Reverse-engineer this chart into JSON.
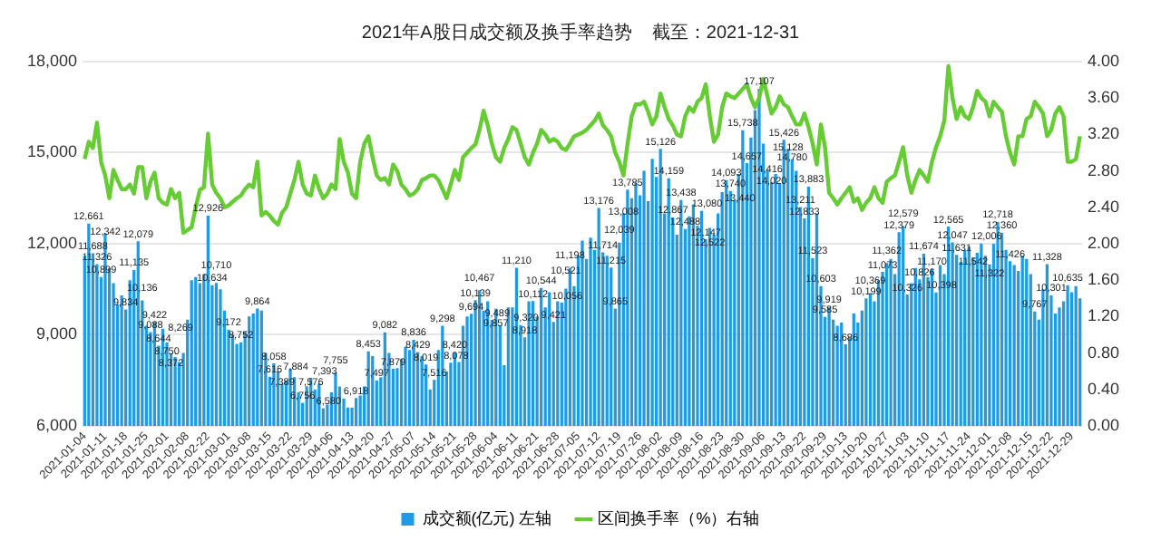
{
  "chart_data": {
    "type": "bar",
    "title": "2021年A股日成交额及换手率趋势    截至：2021-12-31",
    "categories": [
      "2021-01-04",
      null,
      null,
      null,
      null,
      "2021-01-11",
      null,
      null,
      null,
      null,
      "2021-01-18",
      null,
      null,
      null,
      null,
      "2021-01-25",
      null,
      null,
      null,
      null,
      "2021-02-01",
      null,
      null,
      null,
      null,
      "2021-02-08",
      null,
      null,
      null,
      null,
      "2021-02-22",
      null,
      null,
      null,
      null,
      "2021-03-01",
      null,
      null,
      null,
      null,
      "2021-03-08",
      null,
      null,
      null,
      null,
      "2021-03-15",
      null,
      null,
      null,
      null,
      "2021-03-22",
      null,
      null,
      null,
      null,
      "2021-03-29",
      null,
      null,
      null,
      null,
      "2021-04-06",
      null,
      null,
      null,
      null,
      "2021-04-13",
      null,
      null,
      null,
      null,
      "2021-04-20",
      null,
      null,
      null,
      null,
      "2021-04-27",
      null,
      null,
      null,
      null,
      "2021-05-07",
      null,
      null,
      null,
      null,
      "2021-05-14",
      null,
      null,
      null,
      null,
      "2021-05-21",
      null,
      null,
      null,
      null,
      "2021-05-28",
      null,
      null,
      null,
      null,
      "2021-06-04",
      null,
      null,
      null,
      null,
      "2021-06-11",
      null,
      null,
      null,
      null,
      "2021-06-21",
      null,
      null,
      null,
      null,
      "2021-06-28",
      null,
      null,
      null,
      null,
      "2021-07-05",
      null,
      null,
      null,
      null,
      "2021-07-12",
      null,
      null,
      null,
      null,
      "2021-07-19",
      null,
      null,
      null,
      null,
      "2021-07-26",
      null,
      null,
      null,
      null,
      "2021-08-02",
      null,
      null,
      null,
      null,
      "2021-08-09",
      null,
      null,
      null,
      null,
      "2021-08-16",
      null,
      null,
      null,
      null,
      "2021-08-23",
      null,
      null,
      null,
      null,
      "2021-08-30",
      null,
      null,
      null,
      null,
      "2021-09-06",
      null,
      null,
      null,
      null,
      "2021-09-13",
      null,
      null,
      null,
      null,
      "2021-09-22",
      null,
      null,
      null,
      null,
      "2021-09-29",
      null,
      null,
      null,
      null,
      "2021-10-13",
      null,
      null,
      null,
      null,
      "2021-10-20",
      null,
      null,
      null,
      null,
      "2021-10-27",
      null,
      null,
      null,
      null,
      "2021-11-03",
      null,
      null,
      null,
      null,
      "2021-11-10",
      null,
      null,
      null,
      null,
      "2021-11-17",
      null,
      null,
      null,
      null,
      "2021-11-24",
      null,
      null,
      null,
      null,
      "2021-12-01",
      null,
      null,
      null,
      null,
      "2021-12-08",
      null,
      null,
      null,
      null,
      "2021-12-15",
      null,
      null,
      null,
      null,
      "2021-12-22",
      null,
      null,
      null,
      null,
      "2021-12-29",
      null,
      null
    ],
    "series": [
      {
        "name": "成交额(亿元) 左轴",
        "type": "bar",
        "color": "#1e9be3",
        "values": [
          11600,
          12661,
          11688,
          11326,
          10899,
          12342,
          11200,
          10700,
          10000,
          10300,
          9834,
          10800,
          11135,
          12079,
          10136,
          9300,
          9088,
          9422,
          8644,
          9200,
          8750,
          8372,
          8269,
          8100,
          8400,
          9500,
          10800,
          10900,
          10700,
          11000,
          12926,
          10634,
          10710,
          10500,
          9800,
          9172,
          9000,
          8700,
          8752,
          9100,
          9600,
          9700,
          9864,
          9800,
          8400,
          7616,
          8058,
          7800,
          7389,
          7500,
          7884,
          7600,
          7100,
          6756,
          7300,
          7576,
          7200,
          7393,
          6580,
          6700,
          7100,
          7755,
          7300,
          6900,
          6600,
          6600,
          6918,
          7000,
          7300,
          8453,
          8300,
          7497,
          7600,
          9082,
          8400,
          7879,
          7900,
          8200,
          8600,
          8500,
          8836,
          8429,
          8300,
          8019,
          7200,
          7516,
          8500,
          9298,
          7800,
          8078,
          8420,
          8100,
          9300,
          9600,
          9694,
          10139,
          10467,
          9800,
          10100,
          9489,
          9857,
          9300,
          8000,
          9900,
          9900,
          11210,
          9320,
          8918,
          10100,
          10112,
          9600,
          10544,
          9900,
          10400,
          9421,
          10100,
          10056,
          10521,
          11198,
          10600,
          11600,
          12100,
          11500,
          12200,
          11800,
          13176,
          11714,
          11600,
          11215,
          9865,
          12039,
          13008,
          13785,
          13500,
          14000,
          13600,
          14400,
          13400,
          14800,
          14200,
          15126,
          13000,
          14159,
          12867,
          12300,
          13438,
          12488,
          12900,
          13300,
          12600,
          13080,
          12147,
          12522,
          12300,
          13000,
          13700,
          14093,
          13740,
          13440,
          14300,
          15738,
          14657,
          15500,
          16400,
          17107,
          15300,
          14416,
          14020,
          14300,
          14000,
          15426,
          15128,
          14780,
          14400,
          13211,
          12833,
          13883,
          11523,
          13000,
          10603,
          9585,
          9919,
          9500,
          9300,
          9400,
          8686,
          8900,
          9700,
          9400,
          9800,
          10199,
          10369,
          10100,
          10800,
          11073,
          11362,
          11500,
          11000,
          12379,
          12579,
          10326,
          10700,
          11200,
          10826,
          11674,
          10900,
          11170,
          10398,
          11300,
          11000,
          12565,
          12047,
          11631,
          11400,
          11800,
          11900,
          11542,
          11700,
          12006,
          11600,
          11322,
          12000,
          12718,
          12360,
          11800,
          11426,
          11300,
          11100,
          11600,
          11500,
          11000,
          9767,
          9500,
          10500,
          11328,
          10301,
          9700,
          9900,
          10100,
          10635,
          10400,
          10600,
          10200
        ],
        "value_labels": [
          null,
          "12,661",
          "11,688",
          "11,326",
          "10,899",
          "12,342",
          null,
          null,
          null,
          null,
          "9,834",
          null,
          "11,135",
          "12,079",
          "10,136",
          null,
          "9,088",
          "9,422",
          "8,644",
          null,
          "8,750",
          "8,372",
          "8,269",
          null,
          null,
          null,
          null,
          null,
          null,
          null,
          "12,926",
          "10,634",
          "10,710",
          null,
          null,
          "9,172",
          null,
          null,
          "8,752",
          null,
          null,
          null,
          "9,864",
          null,
          null,
          "7,616",
          "8,058",
          null,
          "7,389",
          null,
          "7,884",
          null,
          null,
          "6,756",
          null,
          "7,576",
          null,
          "7,393",
          "6,580",
          null,
          null,
          "7,755",
          null,
          null,
          null,
          null,
          "6,918",
          null,
          null,
          "8,453",
          null,
          "7,497",
          null,
          "9,082",
          null,
          "7,879",
          null,
          null,
          null,
          null,
          "8,836",
          "8,429",
          null,
          "8,019",
          null,
          "7,516",
          null,
          "9,298",
          null,
          "8,078",
          "8,420",
          null,
          null,
          null,
          "9,694",
          "10,139",
          "10,467",
          null,
          null,
          "9,489",
          "9,857",
          null,
          null,
          null,
          null,
          "11,210",
          "9,320",
          "8,918",
          null,
          "10,112",
          null,
          "10,544",
          null,
          null,
          "9,421",
          null,
          "10,056",
          "10,521",
          "11,198",
          null,
          null,
          null,
          null,
          null,
          null,
          "13,176",
          "11,714",
          null,
          "11,215",
          "9,865",
          "12,039",
          "13,008",
          "13,785",
          null,
          null,
          null,
          null,
          null,
          null,
          null,
          "15,126",
          null,
          "14,159",
          "12,867",
          null,
          "13,438",
          "12,488",
          null,
          null,
          null,
          "13,080",
          "12,147",
          "12,522",
          null,
          null,
          null,
          "14,093",
          "13,740",
          "13,440",
          null,
          "15,738",
          "14,657",
          null,
          null,
          "17,107",
          null,
          "14,416",
          "14,020",
          null,
          null,
          "15,426",
          "15,128",
          "14,780",
          null,
          "13,211",
          "12,833",
          "13,883",
          "11,523",
          null,
          "10,603",
          "9,585",
          "9,919",
          null,
          null,
          null,
          "8,686",
          null,
          null,
          null,
          null,
          "10,199",
          "10,369",
          null,
          null,
          "11,073",
          "11,362",
          null,
          null,
          "12,379",
          "12,579",
          "10,326",
          null,
          null,
          "10,826",
          "11,674",
          null,
          "11,170",
          "10,398",
          null,
          null,
          "12,565",
          "12,047",
          "11,631",
          null,
          null,
          null,
          "11,542",
          null,
          "12,006",
          null,
          "11,322",
          null,
          "12,718",
          "12,360",
          null,
          "11,426",
          null,
          null,
          null,
          null,
          null,
          "9,767",
          null,
          null,
          "11,328",
          "10,301",
          null,
          null,
          null,
          "10,635",
          null,
          null,
          null
        ]
      },
      {
        "name": "区间换手率（%）右轴",
        "type": "line",
        "axis": "y2",
        "color": "#66cc33",
        "values": [
          2.93,
          3.12,
          3.05,
          3.33,
          2.9,
          2.75,
          2.5,
          2.81,
          2.7,
          2.6,
          2.6,
          2.65,
          2.55,
          2.84,
          2.84,
          2.5,
          2.68,
          2.78,
          2.5,
          2.45,
          2.43,
          2.6,
          2.5,
          2.56,
          2.12,
          2.15,
          2.18,
          2.4,
          2.59,
          2.62,
          3.21,
          2.65,
          2.56,
          2.5,
          2.4,
          2.42,
          2.46,
          2.5,
          2.53,
          2.6,
          2.65,
          2.62,
          2.9,
          2.31,
          2.35,
          2.31,
          2.25,
          2.21,
          2.34,
          2.4,
          2.55,
          2.7,
          2.9,
          2.65,
          2.55,
          2.53,
          2.75,
          2.6,
          2.5,
          2.55,
          2.65,
          2.6,
          3.15,
          2.9,
          2.78,
          2.55,
          2.5,
          2.9,
          3.1,
          3.18,
          2.95,
          2.75,
          2.7,
          2.72,
          2.65,
          2.87,
          2.8,
          2.65,
          2.6,
          2.53,
          2.55,
          2.6,
          2.7,
          2.72,
          2.75,
          2.75,
          2.7,
          2.6,
          2.5,
          2.65,
          2.81,
          2.7,
          2.95,
          3.0,
          3.05,
          3.09,
          3.25,
          3.46,
          3.3,
          3.1,
          2.95,
          2.9,
          3.05,
          3.15,
          3.28,
          3.25,
          3.1,
          2.95,
          2.87,
          3.0,
          3.1,
          3.25,
          3.2,
          3.12,
          3.15,
          3.12,
          3.05,
          3.03,
          3.1,
          3.18,
          3.2,
          3.22,
          3.25,
          3.3,
          3.35,
          3.43,
          3.3,
          3.25,
          3.18,
          3.0,
          2.9,
          2.75,
          3.1,
          3.4,
          3.53,
          3.53,
          3.56,
          3.45,
          3.31,
          3.4,
          3.65,
          3.5,
          3.37,
          3.3,
          3.2,
          3.18,
          3.4,
          3.5,
          3.45,
          3.56,
          3.6,
          3.75,
          3.4,
          3.12,
          3.2,
          3.5,
          3.65,
          3.62,
          3.6,
          3.65,
          3.7,
          3.75,
          3.6,
          3.5,
          3.6,
          3.81,
          3.62,
          3.43,
          3.5,
          3.62,
          3.53,
          3.5,
          3.4,
          3.31,
          3.31,
          3.43,
          3.28,
          3.1,
          2.87,
          3.31,
          3.06,
          2.56,
          2.5,
          2.43,
          2.5,
          2.56,
          2.62,
          2.46,
          2.5,
          2.37,
          2.45,
          2.5,
          2.62,
          2.5,
          2.45,
          2.68,
          2.72,
          2.75,
          2.9,
          3.06,
          2.75,
          2.56,
          2.7,
          2.81,
          2.75,
          2.68,
          2.9,
          3.06,
          3.18,
          3.35,
          3.95,
          3.6,
          3.37,
          3.5,
          3.4,
          3.37,
          3.5,
          3.68,
          3.6,
          3.56,
          3.4,
          3.56,
          3.5,
          3.45,
          3.18,
          3.0,
          2.87,
          3.18,
          3.18,
          3.37,
          3.4,
          3.56,
          3.5,
          3.43,
          3.18,
          3.25,
          3.43,
          3.5,
          3.4,
          2.9,
          2.9,
          2.93,
          3.18
        ]
      }
    ],
    "ylim": [
      6000,
      18000
    ],
    "yticks": [
      {
        "value": 6000,
        "label": "6,000"
      },
      {
        "value": 9000,
        "label": "9,000"
      },
      {
        "value": 12000,
        "label": "12,000"
      },
      {
        "value": 15000,
        "label": "15,000"
      },
      {
        "value": 18000,
        "label": "18,000"
      }
    ],
    "y2lim": [
      0,
      4
    ],
    "y2ticks": [
      {
        "value": 0,
        "label": "0.00"
      },
      {
        "value": 0.4,
        "label": "0.40"
      },
      {
        "value": 0.8,
        "label": "0.80"
      },
      {
        "value": 1.2,
        "label": "1.20"
      },
      {
        "value": 1.6,
        "label": "1.60"
      },
      {
        "value": 2,
        "label": "2.00"
      },
      {
        "value": 2.4,
        "label": "2.40"
      },
      {
        "value": 2.8,
        "label": "2.80"
      },
      {
        "value": 3.2,
        "label": "3.20"
      },
      {
        "value": 3.6,
        "label": "3.60"
      },
      {
        "value": 4,
        "label": "4.00"
      }
    ],
    "grid": "y",
    "legend": "bottom",
    "marker": "none",
    "line_style": "solid"
  }
}
